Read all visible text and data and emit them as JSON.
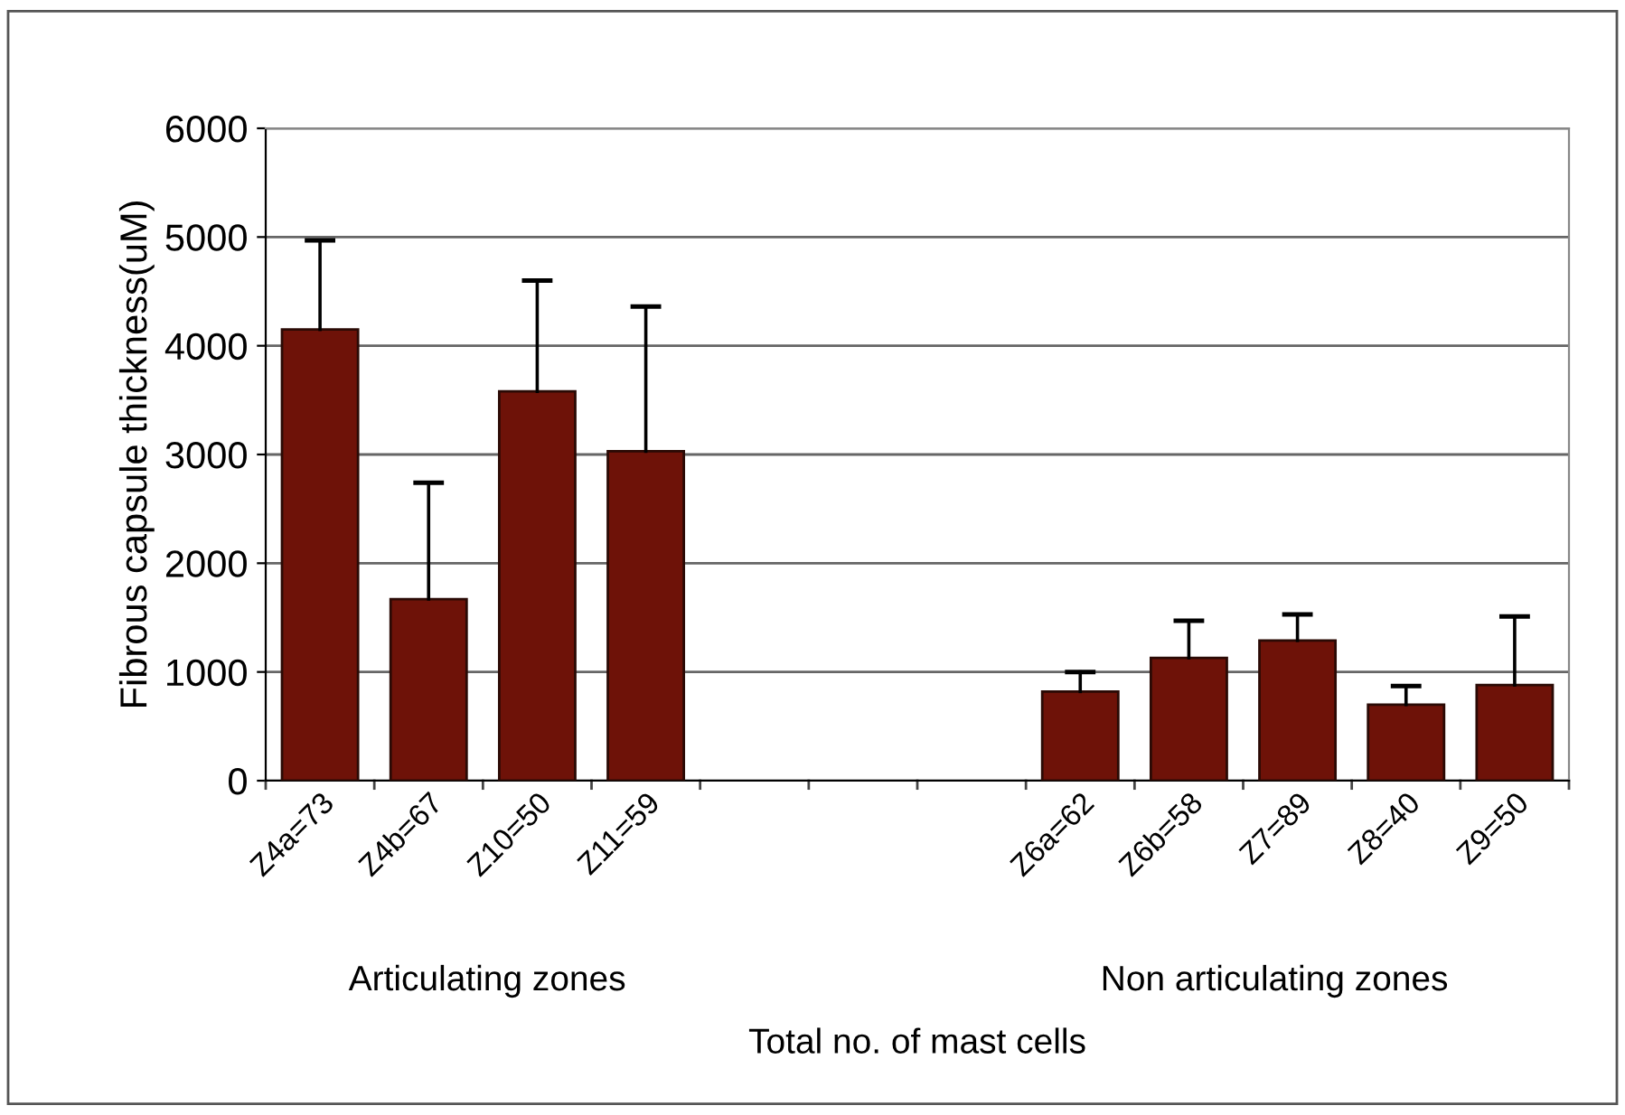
{
  "chart_data": {
    "type": "bar",
    "xlabel": "Total no. of mast cells",
    "ylabel": "Fibrous capsule thickness(uM)",
    "categories": [
      "Z4a=73",
      "Z4b=67",
      "Z10=50",
      "Z11=59",
      null,
      null,
      null,
      "Z6a=62",
      "Z6b=58",
      "Z7=89",
      "Z8=40",
      "Z9=50"
    ],
    "values": [
      4150,
      1670,
      3580,
      3030,
      null,
      null,
      null,
      820,
      1130,
      1290,
      700,
      880
    ],
    "errors": [
      [
        4150,
        4970
      ],
      [
        1670,
        2740
      ],
      [
        3580,
        4600
      ],
      [
        3030,
        4360
      ],
      null,
      null,
      null,
      [
        820,
        1000
      ],
      [
        1130,
        1470
      ],
      [
        1290,
        1530
      ],
      [
        700,
        870
      ],
      [
        880,
        1510
      ]
    ],
    "color": "#6e1208",
    "ylim": [
      0,
      6000
    ],
    "yticks": [
      0,
      1000,
      2000,
      3000,
      4000,
      5000,
      6000
    ],
    "grid": "y",
    "legend": false,
    "annotations": [
      "Articulating zones",
      "Non articulating zones"
    ]
  }
}
